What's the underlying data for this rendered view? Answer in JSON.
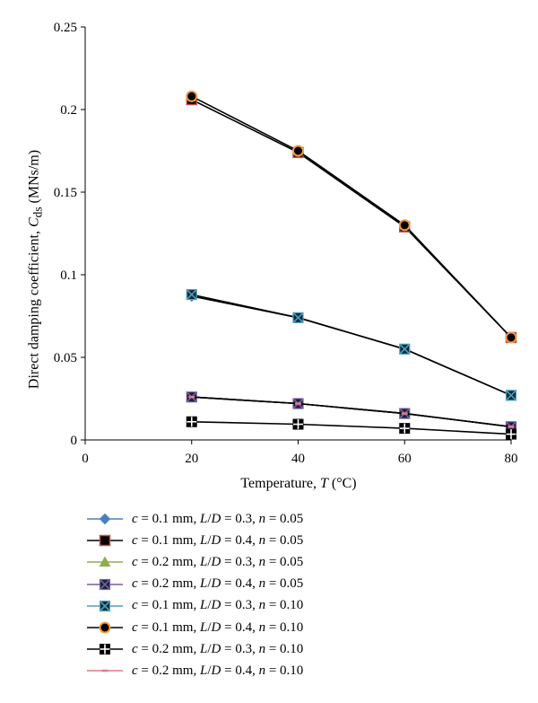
{
  "chart_data": {
    "type": "line",
    "xlabel_parts": [
      "Temperature, ",
      "T",
      " (°C)"
    ],
    "ylabel_parts": [
      "Direct damping coefficient, ",
      "C",
      "ds",
      " (MNs/m)"
    ],
    "x": [
      20,
      40,
      60,
      80
    ],
    "xlim": [
      0,
      80
    ],
    "ylim": [
      0,
      0.25
    ],
    "xticks": [
      "0",
      "20",
      "40",
      "60",
      "80"
    ],
    "yticks": [
      "0",
      "0.05",
      "0.1",
      "0.15",
      "0.2",
      "0.25"
    ],
    "grid": false,
    "legend_position": "bottom",
    "series": [
      {
        "name": "c = 0.1 mm, L/D = 0.3, n = 0.05",
        "values": [
          0.087,
          0.074,
          0.055,
          0.027
        ],
        "color": "#4a7fc1",
        "marker": "diamond"
      },
      {
        "name": "c = 0.1 mm, L/D = 0.4, n = 0.05",
        "values": [
          0.206,
          0.174,
          0.129,
          0.062
        ],
        "color": "#c0504d",
        "marker": "square"
      },
      {
        "name": "c = 0.2 mm, L/D = 0.3, n = 0.05",
        "values": [
          0.026,
          0.022,
          0.016,
          0.008
        ],
        "color": "#8fad4f",
        "marker": "triangle"
      },
      {
        "name": "c = 0.2 mm, L/D = 0.4, n = 0.05",
        "values": [
          0.026,
          0.022,
          0.016,
          0.008
        ],
        "color": "#7a5c9e",
        "marker": "x-square"
      },
      {
        "name": "c = 0.1 mm, L/D = 0.3, n = 0.10",
        "values": [
          0.088,
          0.074,
          0.055,
          0.027
        ],
        "color": "#4aa3b8",
        "marker": "x-square"
      },
      {
        "name": "c = 0.1 mm, L/D = 0.4, n = 0.10",
        "values": [
          0.208,
          0.175,
          0.13,
          0.062
        ],
        "color": "#f39c3b",
        "marker": "circle"
      },
      {
        "name": "c = 0.2 mm, L/D = 0.3, n = 0.10",
        "values": [
          0.011,
          0.0095,
          0.007,
          0.0035
        ],
        "color": "#4a7fc1",
        "marker": "plus-square"
      },
      {
        "name": "c = 0.2 mm, L/D = 0.4, n = 0.10",
        "values": [
          0.026,
          0.022,
          0.016,
          0.008
        ],
        "color": "#e07a8a",
        "marker": "dash"
      }
    ]
  },
  "legend": {
    "items": [
      {
        "c": "0.1",
        "ld": "0.3",
        "n": "0.05"
      },
      {
        "c": "0.1",
        "ld": "0.4",
        "n": "0.05"
      },
      {
        "c": "0.2",
        "ld": "0.3",
        "n": "0.05"
      },
      {
        "c": "0.2",
        "ld": "0.4",
        "n": "0.05"
      },
      {
        "c": "0.1",
        "ld": "0.3",
        "n": "0.10"
      },
      {
        "c": "0.1",
        "ld": "0.4",
        "n": "0.10"
      },
      {
        "c": "0.2",
        "ld": "0.3",
        "n": "0.10"
      },
      {
        "c": "0.2",
        "ld": "0.4",
        "n": "0.10"
      }
    ]
  }
}
